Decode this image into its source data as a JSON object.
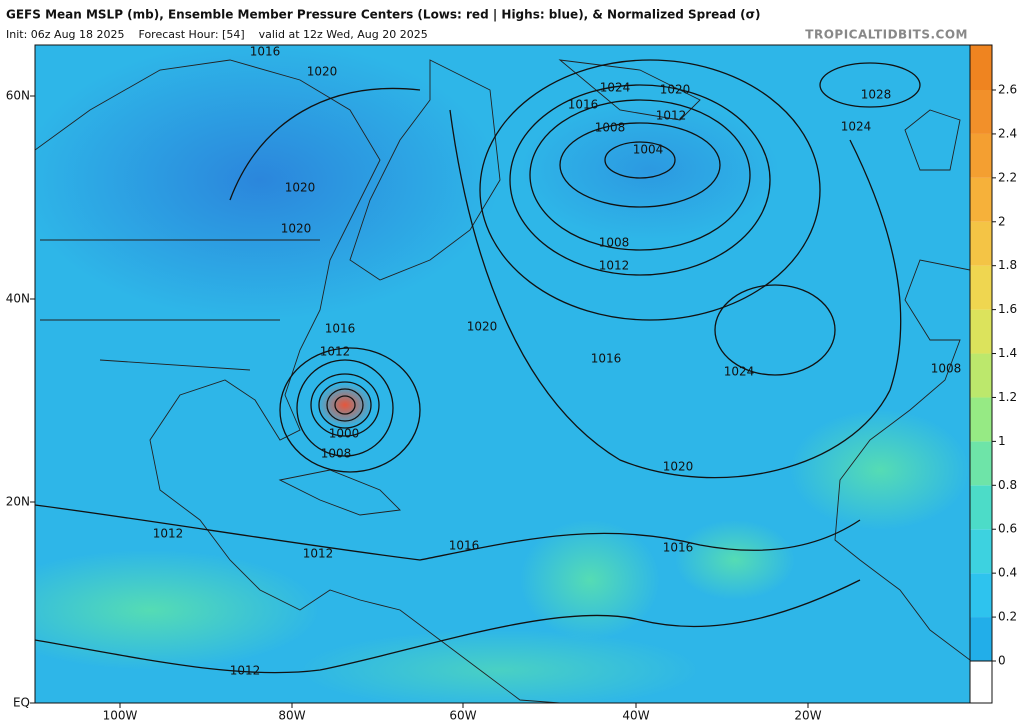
{
  "header": {
    "title": "GEFS Mean MSLP (mb), Ensemble Member Pressure Centers (Lows: red | Highs: blue), & Normalized Spread (σ)",
    "init": "Init: 06z Aug 18 2025    Forecast Hour: [54]    valid at 12z Wed, Aug 20 2025",
    "site": "TROPICALTIDBITS.COM"
  },
  "map": {
    "lat_labels": [
      "60N",
      "40N",
      "20N",
      "EQ"
    ],
    "lon_labels": [
      "100W",
      "80W",
      "60W",
      "40W",
      "20W"
    ],
    "contour_labels": [
      "1016",
      "1020",
      "1020",
      "1020",
      "1024",
      "1020",
      "1016",
      "1012",
      "1008",
      "1004",
      "1024",
      "1028",
      "1008",
      "1012",
      "1020",
      "1016",
      "1012",
      "1016",
      "1024",
      "1000",
      "1008",
      "1020",
      "1008",
      "1016",
      "1016",
      "1012",
      "1012",
      "1012"
    ]
  },
  "colorbar": {
    "ticks": [
      0,
      0.2,
      0.4,
      0.6,
      0.8,
      1,
      1.2,
      1.4,
      1.6,
      1.8,
      2,
      2.2,
      2.4,
      2.6
    ],
    "colors": [
      "#22aee9",
      "#2ec3ee",
      "#3dd2e0",
      "#4cdcc8",
      "#6ee4a8",
      "#96ea84",
      "#bce86c",
      "#dce35c",
      "#efd650",
      "#f4c445",
      "#f6b13a",
      "#f49f31",
      "#f2902a",
      "#ef8420"
    ]
  }
}
